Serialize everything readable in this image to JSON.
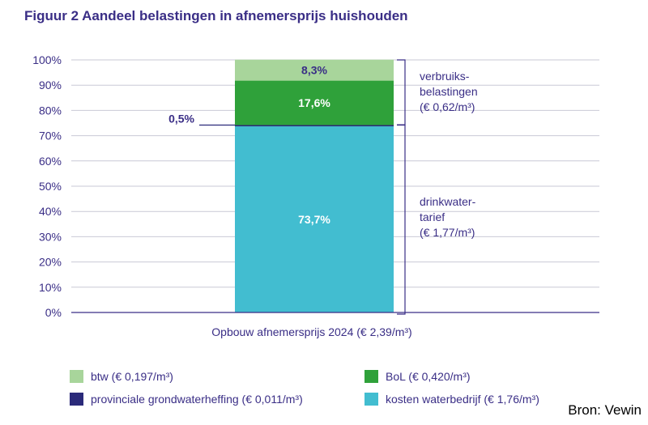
{
  "title": "Figuur 2 Aandeel belastingen in afnemersprijs huishouden",
  "source": "Bron: Vewin",
  "chart_data": {
    "type": "bar",
    "stacked": true,
    "categories": [
      "Opbouw afnemersprijs 2024 (€ 2,39/m³)"
    ],
    "xlabel": "Opbouw afnemersprijs 2024 (€ 2,39/m³)",
    "ylim": [
      0,
      100
    ],
    "yticks": [
      "0%",
      "10%",
      "20%",
      "30%",
      "40%",
      "50%",
      "60%",
      "70%",
      "80%",
      "90%",
      "100%"
    ],
    "grid": true,
    "legend_position": "bottom",
    "series": [
      {
        "name": "kosten waterbedrijf (€ 1,76/m³)",
        "values": [
          73.7
        ],
        "label": "73,7%",
        "color": "#42bdd0"
      },
      {
        "name": "provinciale grondwaterheffing (€ 0,011/m³)",
        "values": [
          0.5
        ],
        "label": "0,5%",
        "color": "#2b2a7a"
      },
      {
        "name": "BoL (€ 0,420/m³)",
        "values": [
          17.6
        ],
        "label": "17,6%",
        "color": "#2fa13a"
      },
      {
        "name": "btw (€ 0,197/m³)",
        "values": [
          8.3
        ],
        "label": "8,3%",
        "color": "#a8d59b"
      }
    ],
    "legend_order": [
      3,
      2,
      1,
      0
    ],
    "annotations": [
      {
        "text": [
          "verbruiks-",
          "belastingen",
          "(€ 0,62/m³)"
        ],
        "range": [
          73.7,
          100
        ]
      },
      {
        "text": [
          "drinkwater-",
          "tarief",
          "(€ 1,77/m³)"
        ],
        "range": [
          0,
          74.2
        ]
      }
    ]
  }
}
